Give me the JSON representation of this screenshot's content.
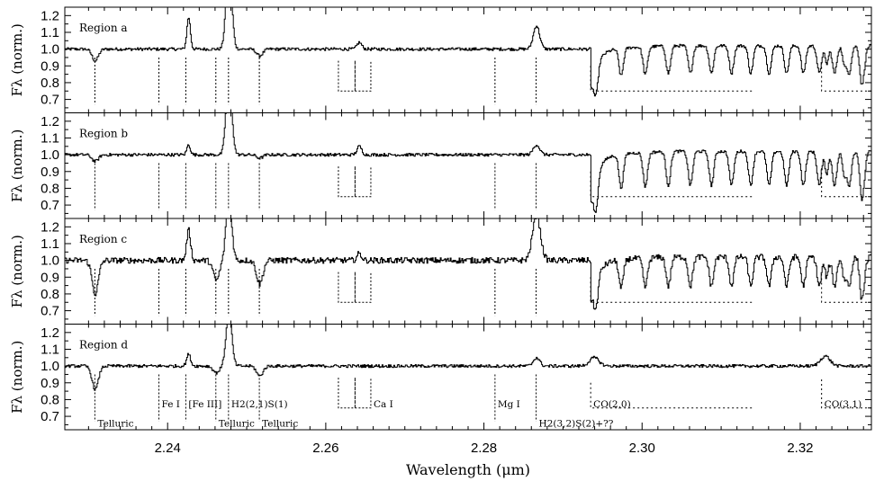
{
  "chart_data": {
    "type": "line",
    "xlabel": "Wavelength (μm)",
    "xlim": [
      2.227,
      2.329
    ],
    "x_ticks": [
      "2.24",
      "2.26",
      "2.28",
      "2.30",
      "2.32"
    ],
    "y_ticks": [
      "0.7",
      "0.8",
      "0.9",
      "1.0",
      "1.1",
      "1.2"
    ],
    "panels": [
      {
        "ylabel": "Fλ (norm.)",
        "region_label": "Region a",
        "ylim": [
          0.62,
          1.25
        ],
        "lines": [
          {
            "x": 2.2308,
            "depth": 0.07,
            "width": 0.0004
          },
          {
            "x": 2.2426,
            "depth": -0.19,
            "width": 0.00022
          },
          {
            "x": 2.2477,
            "depth": -0.55,
            "width": 0.00035
          },
          {
            "x": 2.2516,
            "depth": 0.04,
            "width": 0.0004
          },
          {
            "x": 2.2642,
            "depth": -0.04,
            "width": 0.0003
          },
          {
            "x": 2.2866,
            "depth": -0.14,
            "width": 0.0004
          }
        ],
        "co_band_head": 2.2935,
        "co_depth": 0.22,
        "co_bands": [
          {
            "x": 2.2935,
            "depth": 0.25
          },
          {
            "x": 2.3227,
            "depth": 0.18
          }
        ]
      },
      {
        "ylabel": "Fλ (norm.)",
        "region_label": "Region b",
        "ylim": [
          0.62,
          1.25
        ],
        "lines": [
          {
            "x": 2.2308,
            "depth": 0.04,
            "width": 0.0004
          },
          {
            "x": 2.2426,
            "depth": -0.06,
            "width": 0.00022
          },
          {
            "x": 2.2477,
            "depth": -0.5,
            "width": 0.00035
          },
          {
            "x": 2.2516,
            "depth": 0.02,
            "width": 0.0004
          },
          {
            "x": 2.2642,
            "depth": -0.05,
            "width": 0.0003
          },
          {
            "x": 2.2866,
            "depth": -0.06,
            "width": 0.0004
          }
        ],
        "co_band_head": 2.2935,
        "co_depth": 0.27,
        "co_bands": [
          {
            "x": 2.2935,
            "depth": 0.29
          },
          {
            "x": 2.3227,
            "depth": 0.22
          }
        ]
      },
      {
        "ylabel": "Fλ (norm.)",
        "region_label": "Region c",
        "ylim": [
          0.62,
          1.25
        ],
        "lines": [
          {
            "x": 2.2308,
            "depth": 0.2,
            "width": 0.0004
          },
          {
            "x": 2.2426,
            "depth": -0.18,
            "width": 0.00025
          },
          {
            "x": 2.2461,
            "depth": 0.12,
            "width": 0.0004
          },
          {
            "x": 2.2477,
            "depth": -0.38,
            "width": 0.00035
          },
          {
            "x": 2.2516,
            "depth": 0.14,
            "width": 0.0004
          },
          {
            "x": 2.2642,
            "depth": -0.04,
            "width": 0.0003
          },
          {
            "x": 2.2866,
            "depth": -0.27,
            "width": 0.0005
          }
        ],
        "co_band_head": 2.2935,
        "co_depth": 0.23,
        "co_bands": [
          {
            "x": 2.2935,
            "depth": 0.26
          },
          {
            "x": 2.3227,
            "depth": 0.2
          }
        ]
      },
      {
        "ylabel": "Fλ (norm.)",
        "region_label": "Region d",
        "ylim": [
          0.62,
          1.25
        ],
        "lines": [
          {
            "x": 2.2308,
            "depth": 0.14,
            "width": 0.0004
          },
          {
            "x": 2.2426,
            "depth": -0.07,
            "width": 0.00025
          },
          {
            "x": 2.2461,
            "depth": 0.04,
            "width": 0.0004
          },
          {
            "x": 2.2477,
            "depth": -0.33,
            "width": 0.00035
          },
          {
            "x": 2.2516,
            "depth": 0.06,
            "width": 0.0004
          },
          {
            "x": 2.2866,
            "depth": -0.05,
            "width": 0.0004
          }
        ],
        "co_band_head": 2.2935,
        "co_depth": 0.0,
        "co_bands": [
          {
            "x": 2.2935,
            "depth": -0.05
          },
          {
            "x": 2.3227,
            "depth": -0.06
          }
        ]
      }
    ],
    "annotations": [
      {
        "label": "Telluric",
        "x": 2.2308,
        "row": "low"
      },
      {
        "label": "Fe I",
        "x": 2.2389,
        "row": "high"
      },
      {
        "label": "[Fe III]",
        "x": 2.2423,
        "row": "high"
      },
      {
        "label": "Telluric",
        "x": 2.2461,
        "row": "low"
      },
      {
        "label": "H2(2,1)S(1)",
        "x": 2.2477,
        "row": "high"
      },
      {
        "label": "Telluric",
        "x": 2.2516,
        "row": "low"
      },
      {
        "label": "Ca I",
        "x": 2.2657,
        "row": "high"
      },
      {
        "label": "Mg I",
        "x": 2.2814,
        "row": "high"
      },
      {
        "label": "H2(3,2)S(2)+??",
        "x": 2.2866,
        "row": "low"
      },
      {
        "label": "CO(2,0)",
        "x": 2.2935,
        "row": "high"
      },
      {
        "label": "CO(3,1)",
        "x": 2.3227,
        "row": "high"
      }
    ],
    "grid": false,
    "legend": "none"
  }
}
